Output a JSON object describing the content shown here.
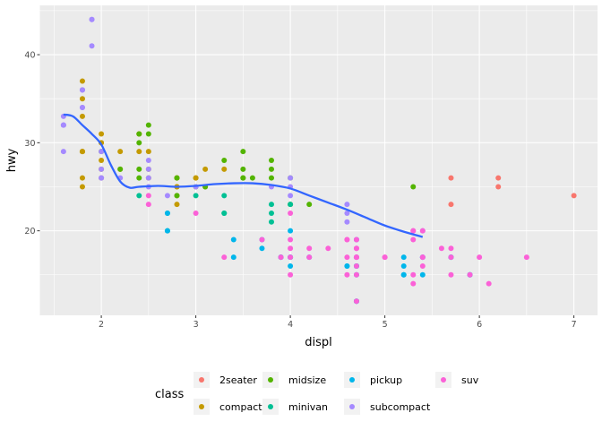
{
  "chart_data": {
    "type": "scatter",
    "xlabel": "displ",
    "ylabel": "hwy",
    "xlim": [
      1.35,
      7.25
    ],
    "ylim": [
      10.4,
      45.6
    ],
    "x_ticks": [
      2,
      3,
      4,
      5,
      6,
      7
    ],
    "x_tick_labels": [
      "2",
      "3",
      "4",
      "5",
      "6",
      "7"
    ],
    "y_ticks": [
      20,
      30,
      40
    ],
    "y_tick_labels": [
      "20",
      "30",
      "40"
    ],
    "grid": true,
    "background": "#ebebeb",
    "legend": {
      "title": "class",
      "position": "bottom",
      "entries": [
        {
          "key": "2seater",
          "label": "2seater",
          "color": "#f8766d"
        },
        {
          "key": "compact",
          "label": "compact",
          "color": "#c49a00"
        },
        {
          "key": "midsize",
          "label": "midsize",
          "color": "#53b400"
        },
        {
          "key": "minivan",
          "label": "minivan",
          "color": "#00c094"
        },
        {
          "key": "pickup",
          "label": "pickup",
          "color": "#00b6eb"
        },
        {
          "key": "subcompact",
          "label": "subcompact",
          "color": "#a58aff"
        },
        {
          "key": "suv",
          "label": "suv",
          "color": "#fb61d7"
        }
      ]
    },
    "series": [
      {
        "key": "2seater",
        "points": [
          [
            5.7,
            26
          ],
          [
            5.7,
            23
          ],
          [
            6.2,
            26
          ],
          [
            6.2,
            25
          ],
          [
            7.0,
            24
          ]
        ]
      },
      {
        "key": "compact",
        "points": [
          [
            1.8,
            29
          ],
          [
            1.8,
            29
          ],
          [
            2.0,
            31
          ],
          [
            2.0,
            30
          ],
          [
            2.8,
            26
          ],
          [
            2.8,
            26
          ],
          [
            3.1,
            27
          ],
          [
            1.8,
            26
          ],
          [
            1.8,
            25
          ],
          [
            2.0,
            28
          ],
          [
            2.0,
            27
          ],
          [
            2.8,
            25
          ],
          [
            2.8,
            25
          ],
          [
            3.1,
            25
          ],
          [
            2.2,
            27
          ],
          [
            2.2,
            29
          ],
          [
            2.4,
            31
          ],
          [
            2.4,
            31
          ],
          [
            3.0,
            26
          ],
          [
            1.8,
            37
          ],
          [
            1.8,
            35
          ],
          [
            1.8,
            29
          ],
          [
            1.8,
            33
          ],
          [
            2.0,
            30
          ],
          [
            2.0,
            26
          ],
          [
            2.5,
            27
          ],
          [
            2.5,
            26
          ],
          [
            2.8,
            23
          ],
          [
            2.8,
            24
          ],
          [
            2.4,
            29
          ],
          [
            2.5,
            29
          ],
          [
            3.0,
            26
          ],
          [
            3.3,
            27
          ]
        ]
      },
      {
        "key": "midsize",
        "points": [
          [
            2.4,
            26
          ],
          [
            2.4,
            30
          ],
          [
            2.4,
            31
          ],
          [
            2.5,
            31
          ],
          [
            2.5,
            32
          ],
          [
            3.3,
            28
          ],
          [
            3.5,
            26
          ],
          [
            3.5,
            26
          ],
          [
            3.5,
            29
          ],
          [
            3.5,
            27
          ],
          [
            3.6,
            26
          ],
          [
            3.8,
            28
          ],
          [
            3.8,
            26
          ],
          [
            3.8,
            27
          ],
          [
            3.1,
            25
          ],
          [
            2.2,
            27
          ],
          [
            4.0,
            26
          ],
          [
            4.2,
            23
          ],
          [
            2.8,
            24
          ],
          [
            2.4,
            27
          ],
          [
            3.0,
            25
          ],
          [
            5.3,
            25
          ],
          [
            2.0,
            29
          ],
          [
            2.8,
            26
          ],
          [
            4.0,
            23
          ]
        ]
      },
      {
        "key": "minivan",
        "points": [
          [
            2.4,
            24
          ],
          [
            3.0,
            24
          ],
          [
            3.3,
            22
          ],
          [
            3.3,
            22
          ],
          [
            3.3,
            24
          ],
          [
            3.8,
            22
          ],
          [
            3.8,
            21
          ],
          [
            3.8,
            23
          ],
          [
            4.0,
            23
          ],
          [
            2.7,
            20
          ],
          [
            2.7,
            22
          ]
        ]
      },
      {
        "key": "pickup",
        "points": [
          [
            3.7,
            19
          ],
          [
            3.7,
            18
          ],
          [
            3.9,
            17
          ],
          [
            3.9,
            17
          ],
          [
            4.7,
            17
          ],
          [
            4.7,
            16
          ],
          [
            4.7,
            12
          ],
          [
            5.2,
            15
          ],
          [
            5.2,
            16
          ],
          [
            5.7,
            17
          ],
          [
            5.9,
            15
          ],
          [
            4.7,
            15
          ],
          [
            4.7,
            16
          ],
          [
            5.2,
            15
          ],
          [
            5.2,
            17
          ],
          [
            5.7,
            17
          ],
          [
            5.9,
            15
          ],
          [
            2.7,
            20
          ],
          [
            2.7,
            22
          ],
          [
            3.4,
            17
          ],
          [
            3.4,
            19
          ],
          [
            4.0,
            17
          ],
          [
            4.0,
            20
          ],
          [
            4.2,
            17
          ],
          [
            4.6,
            16
          ],
          [
            4.6,
            16
          ],
          [
            4.7,
            19
          ],
          [
            4.7,
            12
          ],
          [
            4.7,
            16
          ],
          [
            5.4,
            15
          ],
          [
            5.4,
            17
          ],
          [
            4.0,
            17
          ],
          [
            4.0,
            16
          ]
        ]
      },
      {
        "key": "subcompact",
        "points": [
          [
            1.8,
            34
          ],
          [
            1.8,
            36
          ],
          [
            1.8,
            36
          ],
          [
            2.0,
            26
          ],
          [
            2.0,
            27
          ],
          [
            1.6,
            33
          ],
          [
            1.6,
            32
          ],
          [
            1.6,
            32
          ],
          [
            1.6,
            29
          ],
          [
            1.6,
            32
          ],
          [
            1.8,
            34
          ],
          [
            1.8,
            36
          ],
          [
            1.9,
            44
          ],
          [
            1.9,
            41
          ],
          [
            1.9,
            44
          ],
          [
            2.0,
            29
          ],
          [
            2.0,
            26
          ],
          [
            2.2,
            26
          ],
          [
            2.5,
            27
          ],
          [
            2.5,
            28
          ],
          [
            2.5,
            26
          ],
          [
            2.7,
            24
          ],
          [
            3.8,
            25
          ],
          [
            4.0,
            26
          ],
          [
            4.6,
            23
          ],
          [
            4.6,
            22
          ],
          [
            5.4,
            20
          ],
          [
            5.4,
            17
          ],
          [
            5.4,
            17
          ],
          [
            4.0,
            24
          ],
          [
            4.6,
            21
          ],
          [
            5.4,
            17
          ],
          [
            2.5,
            25
          ],
          [
            3.0,
            25
          ],
          [
            4.7,
            19
          ],
          [
            4.0,
            25
          ]
        ]
      },
      {
        "key": "suv",
        "points": [
          [
            5.3,
            20
          ],
          [
            5.3,
            15
          ],
          [
            5.3,
            20
          ],
          [
            5.7,
            17
          ],
          [
            6.0,
            17
          ],
          [
            5.7,
            15
          ],
          [
            5.7,
            18
          ],
          [
            6.5,
            17
          ],
          [
            5.3,
            19
          ],
          [
            4.7,
            17
          ],
          [
            4.7,
            19
          ],
          [
            4.7,
            17
          ],
          [
            4.7,
            12
          ],
          [
            5.9,
            15
          ],
          [
            4.7,
            17
          ],
          [
            4.7,
            18
          ],
          [
            4.0,
            17
          ],
          [
            4.0,
            15
          ],
          [
            4.0,
            18
          ],
          [
            4.6,
            17
          ],
          [
            5.0,
            17
          ],
          [
            4.2,
            17
          ],
          [
            4.2,
            18
          ],
          [
            4.4,
            18
          ],
          [
            4.6,
            19
          ],
          [
            5.4,
            17
          ],
          [
            5.4,
            16
          ],
          [
            3.9,
            17
          ],
          [
            4.7,
            16
          ],
          [
            5.6,
            18
          ],
          [
            6.1,
            14
          ],
          [
            5.3,
            14
          ],
          [
            5.4,
            20
          ],
          [
            3.7,
            19
          ],
          [
            4.0,
            19
          ],
          [
            4.6,
            15
          ],
          [
            4.6,
            19
          ],
          [
            4.7,
            18
          ],
          [
            4.7,
            15
          ],
          [
            5.0,
            17
          ],
          [
            2.5,
            23
          ],
          [
            2.5,
            24
          ],
          [
            3.0,
            22
          ],
          [
            3.3,
            17
          ],
          [
            4.0,
            22
          ]
        ]
      }
    ],
    "smooth": {
      "color": "#3366ff",
      "x": [
        1.6,
        1.7,
        1.8,
        1.9,
        2.0,
        2.1,
        2.2,
        2.3,
        2.4,
        2.6,
        2.8,
        3.0,
        3.2,
        3.4,
        3.6,
        3.8,
        4.0,
        4.2,
        4.4,
        4.6,
        4.8,
        5.0,
        5.2,
        5.4
      ],
      "y": [
        33.2,
        33.0,
        32.0,
        31.0,
        29.8,
        27.5,
        25.6,
        24.9,
        25.0,
        25.1,
        25.0,
        25.1,
        25.3,
        25.4,
        25.4,
        25.2,
        24.8,
        24.0,
        23.2,
        22.4,
        21.5,
        20.6,
        19.9,
        19.3
      ]
    }
  }
}
